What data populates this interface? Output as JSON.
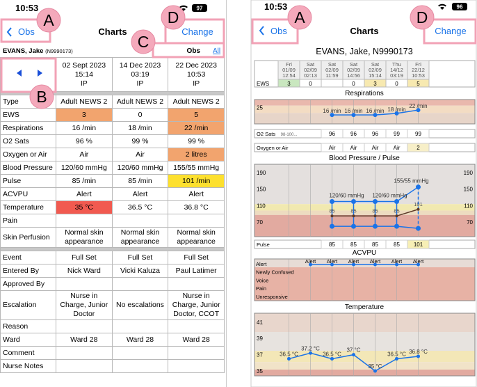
{
  "callouts": {
    "a": "A",
    "b": "B",
    "c": "C",
    "d": "D"
  },
  "left": {
    "status_time": "10:53",
    "battery": "97",
    "back": "Obs",
    "title": "Charts",
    "action": "Change",
    "patient_name": "EVANS, Jake",
    "patient_id": "(N9990173)",
    "tab_obs": "Obs",
    "tab_all": "All",
    "columns": [
      {
        "date": "02 Sept 2023",
        "time": "15:14",
        "status": "IP"
      },
      {
        "date": "14 Dec 2023",
        "time": "03:19",
        "status": "IP"
      },
      {
        "date": "22 Dec 2023",
        "time": "10:53",
        "status": "IP"
      }
    ],
    "rows": [
      {
        "label": "Type",
        "cells": [
          "Adult NEWS 2",
          "Adult NEWS 2",
          "Adult NEWS 2"
        ]
      },
      {
        "label": "EWS",
        "cells": [
          3,
          0,
          5
        ],
        "colors": [
          "#f2a46e",
          null,
          "#f2a46e"
        ]
      },
      {
        "label": "Respirations",
        "cells": [
          "16 /min",
          "18 /min",
          "22 /min"
        ],
        "colors": [
          null,
          null,
          "#f2a46e"
        ]
      },
      {
        "label": "O2 Sats",
        "cells": [
          "96 %",
          "99 %",
          "99 %"
        ]
      },
      {
        "label": "Oxygen or Air",
        "cells": [
          "Air",
          "Air",
          "2 litres"
        ],
        "colors": [
          null,
          null,
          "#f2a46e"
        ]
      },
      {
        "label": "Blood Pressure",
        "cells": [
          "120/60 mmHg",
          "120/60 mmHg",
          "155/55 mmHg"
        ]
      },
      {
        "label": "Pulse",
        "cells": [
          "85 /min",
          "85 /min",
          "101 /min"
        ],
        "colors": [
          null,
          null,
          "#fde02e"
        ]
      },
      {
        "label": "ACVPU",
        "cells": [
          "Alert",
          "Alert",
          "Alert"
        ]
      },
      {
        "label": "Temperature",
        "cells": [
          "35 °C",
          "36.5 °C",
          "36.8 °C"
        ],
        "colors": [
          "#f15a50",
          null,
          null
        ]
      },
      {
        "label": "Pain",
        "cells": []
      },
      {
        "label": "Skin Perfusion",
        "cells": [
          "Normal skin appearance",
          "Normal skin appearance",
          "Normal skin appearance"
        ]
      }
    ],
    "rows2": [
      {
        "label": "Event",
        "cells": [
          "Full Set",
          "Full Set",
          "Full Set"
        ]
      },
      {
        "label": "Entered By",
        "cells": [
          "Nick Ward",
          "Vicki Kaluza",
          "Paul Latimer"
        ]
      },
      {
        "label": "Approved By",
        "cells": []
      },
      {
        "label": "Escalation",
        "cells": [
          "Nurse in Charge, Junior Doctor",
          "No escalations",
          "Nurse in Charge, Junior Doctor, CCOT"
        ]
      },
      {
        "label": "Reason",
        "cells": []
      },
      {
        "label": "Ward",
        "cells": [
          "Ward 28",
          "Ward 28",
          "Ward 28"
        ]
      },
      {
        "label": "Comment",
        "cells": []
      },
      {
        "label": "Nurse Notes",
        "cells": []
      }
    ]
  },
  "right": {
    "status_time": "10:53",
    "battery": "96",
    "back": "Obs",
    "title": "Charts",
    "action": "Change",
    "patient": "EVANS, Jake, N9990173",
    "columns": [
      {
        "day": "Fri",
        "date": "01/09",
        "time": "12:54"
      },
      {
        "day": "Sat",
        "date": "02/09",
        "time": "02:13"
      },
      {
        "day": "Sat",
        "date": "02/09",
        "time": "11:59"
      },
      {
        "day": "Sat",
        "date": "02/09",
        "time": "14:56"
      },
      {
        "day": "Sat",
        "date": "02/09",
        "time": "15:14"
      },
      {
        "day": "Thu",
        "date": "14/12",
        "time": "03:19"
      },
      {
        "day": "Fri",
        "date": "22/12",
        "time": "10:53"
      }
    ],
    "ews": {
      "label": "EWS",
      "values": [
        3,
        0,
        null,
        0,
        3,
        0,
        5
      ],
      "colors": [
        "#c9e7bf",
        null,
        null,
        null,
        "#f7e9b0",
        null,
        "#f7e9b0"
      ]
    },
    "respirations": {
      "title": "Respirations",
      "ylim": [
        5,
        35
      ],
      "yticks": [
        25
      ],
      "values": [
        16,
        16,
        16,
        18,
        22
      ],
      "value_labels": [
        "16 /min",
        "16 /min",
        "16 /min",
        "18 /min",
        "22 /min"
      ]
    },
    "o2": {
      "label": "O2 Sats",
      "scale": "98-100...",
      "values": [
        96,
        96,
        96,
        99,
        99
      ]
    },
    "oxygen": {
      "label": "Oxygen or Air",
      "values": [
        "Air",
        "Air",
        "Air",
        "Air",
        "2"
      ],
      "colors": [
        null,
        null,
        null,
        null,
        "#f7efc8"
      ]
    },
    "bp": {
      "title": "Blood Pressure / Pulse",
      "ylim": [
        35,
        210
      ],
      "yticks": [
        70,
        110,
        150,
        190
      ],
      "systolic": [
        120,
        120,
        120,
        120,
        155
      ],
      "diastolic": [
        60,
        60,
        60,
        60,
        55
      ],
      "bp_labels": [
        null,
        "120/60 mmHg",
        null,
        "120/60 mmHg",
        "155/55 mmHg"
      ],
      "pulse": [
        85,
        85,
        85,
        85,
        101
      ],
      "pulse_label": "Pulse",
      "pulse_colors": [
        null,
        null,
        null,
        null,
        "#f7efb5"
      ]
    },
    "acvpu": {
      "title": "ACVPU",
      "levels": [
        "Alert",
        "Newly Confused",
        "Voice",
        "Pain",
        "Unresponsive"
      ],
      "values": [
        "Alert",
        "Alert",
        "Alert",
        "Alert",
        "Alert",
        "Alert"
      ]
    },
    "temperature": {
      "title": "Temperature",
      "ylim": [
        34.4,
        42.1
      ],
      "yticks": [
        35,
        37,
        39,
        41
      ],
      "values": [
        36.5,
        37.2,
        36.5,
        37,
        35,
        36.5,
        36.8
      ],
      "value_labels": [
        "36.5 °C",
        "37.2 °C",
        "36.5 °C",
        "37 °C",
        "35 °C",
        "36.5 °C",
        "36.8 °C"
      ]
    }
  }
}
